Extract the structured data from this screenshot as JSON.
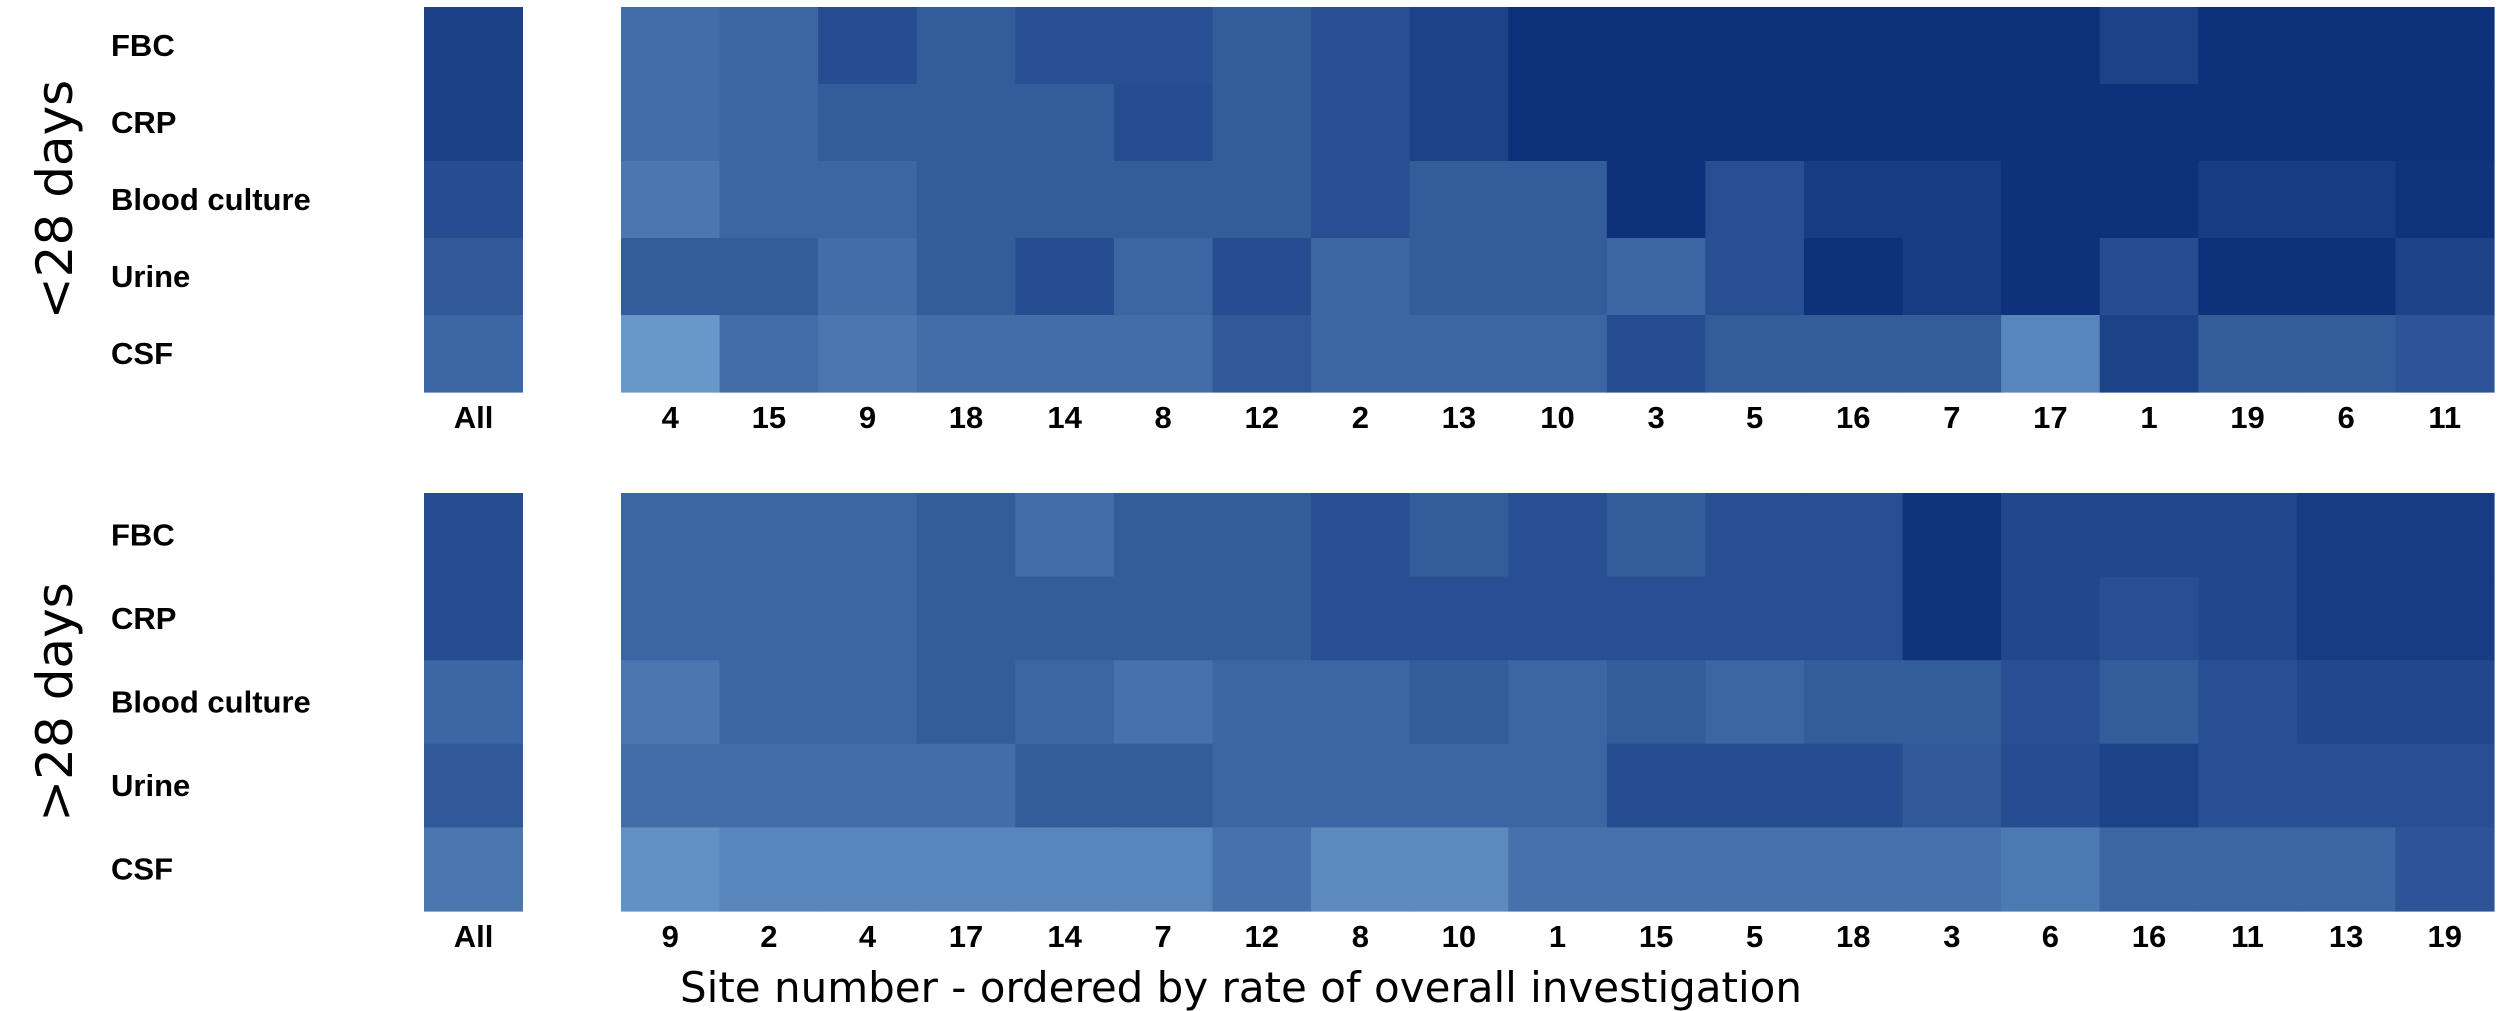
{
  "chart_data": {
    "type": "heatmap",
    "xlabel": "Site number - ordered by rate of overall investigation",
    "rows": [
      "FBC",
      "CRP",
      "Blood culture",
      "Urine",
      "CSF"
    ],
    "all_label": "All",
    "color_scale": {
      "low": "#78a9d8",
      "high": "#0c3079",
      "min": 0,
      "max": 1
    },
    "panels": [
      {
        "label": "<28 days",
        "sites": [
          "4",
          "15",
          "9",
          "18",
          "14",
          "8",
          "12",
          "2",
          "13",
          "10",
          "3",
          "5",
          "16",
          "7",
          "17",
          "1",
          "19",
          "6",
          "11"
        ],
        "all": [
          0.86,
          0.86,
          0.76,
          0.66,
          0.55
        ],
        "values": [
          [
            0.5,
            0.56,
            0.76,
            0.64,
            0.74,
            0.74,
            0.64,
            0.74,
            0.85,
            0.99,
            0.99,
            0.99,
            0.99,
            0.99,
            0.99,
            0.85,
            0.99,
            0.99,
            0.99
          ],
          [
            0.5,
            0.56,
            0.64,
            0.64,
            0.64,
            0.76,
            0.64,
            0.74,
            0.85,
            0.99,
            0.99,
            0.99,
            0.99,
            0.99,
            0.99,
            0.99,
            0.99,
            0.99,
            0.99
          ],
          [
            0.42,
            0.56,
            0.56,
            0.64,
            0.64,
            0.64,
            0.64,
            0.74,
            0.64,
            0.64,
            0.99,
            0.74,
            0.9,
            0.9,
            0.99,
            0.99,
            0.9,
            0.9,
            0.97
          ],
          [
            0.64,
            0.64,
            0.5,
            0.64,
            0.76,
            0.56,
            0.76,
            0.56,
            0.64,
            0.64,
            0.56,
            0.74,
            0.99,
            0.9,
            0.99,
            0.76,
            0.99,
            0.99,
            0.85
          ],
          [
            0.15,
            0.5,
            0.42,
            0.5,
            0.5,
            0.5,
            0.66,
            0.56,
            0.56,
            0.56,
            0.76,
            0.64,
            0.64,
            0.64,
            0.3,
            0.85,
            0.64,
            0.64,
            0.7
          ]
        ]
      },
      {
        "label": ">28 days",
        "sites": [
          "9",
          "2",
          "4",
          "17",
          "14",
          "7",
          "12",
          "8",
          "10",
          "1",
          "15",
          "5",
          "18",
          "3",
          "6",
          "16",
          "11",
          "13",
          "19"
        ],
        "all": [
          0.76,
          0.76,
          0.56,
          0.66,
          0.42
        ],
        "values": [
          [
            0.56,
            0.56,
            0.56,
            0.64,
            0.5,
            0.64,
            0.64,
            0.74,
            0.64,
            0.74,
            0.64,
            0.74,
            0.74,
            0.97,
            0.8,
            0.8,
            0.8,
            0.9,
            0.9
          ],
          [
            0.56,
            0.56,
            0.56,
            0.64,
            0.64,
            0.64,
            0.64,
            0.74,
            0.74,
            0.74,
            0.74,
            0.74,
            0.74,
            0.97,
            0.8,
            0.74,
            0.8,
            0.9,
            0.9
          ],
          [
            0.42,
            0.56,
            0.56,
            0.64,
            0.56,
            0.46,
            0.56,
            0.56,
            0.64,
            0.56,
            0.64,
            0.56,
            0.64,
            0.64,
            0.74,
            0.64,
            0.74,
            0.8,
            0.8
          ],
          [
            0.5,
            0.5,
            0.5,
            0.5,
            0.64,
            0.64,
            0.56,
            0.56,
            0.56,
            0.56,
            0.76,
            0.76,
            0.76,
            0.66,
            0.76,
            0.85,
            0.74,
            0.74,
            0.74
          ],
          [
            0.2,
            0.3,
            0.3,
            0.3,
            0.3,
            0.3,
            0.46,
            0.25,
            0.25,
            0.46,
            0.46,
            0.46,
            0.46,
            0.46,
            0.4,
            0.56,
            0.56,
            0.56,
            0.7
          ]
        ]
      }
    ]
  }
}
